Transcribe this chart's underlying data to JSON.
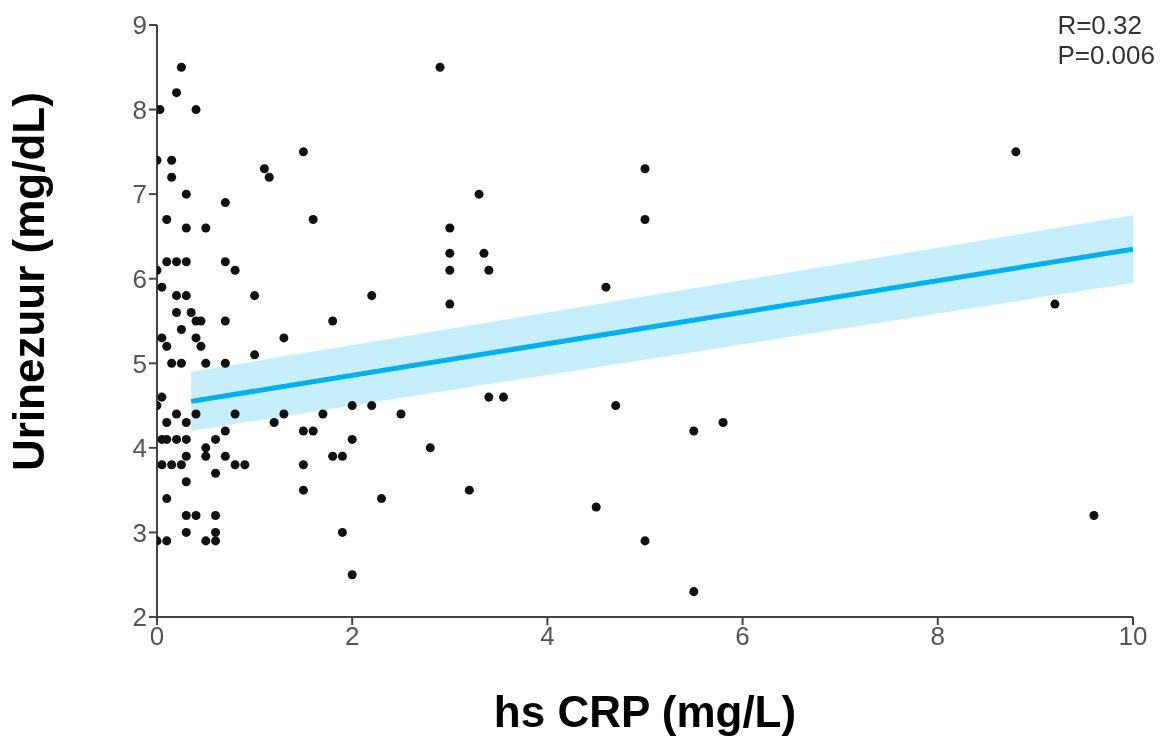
{
  "chart_data": {
    "type": "scatter",
    "xlabel": "hs CRP (mg/L)",
    "ylabel": "Urinezuur (mg/dL)",
    "annotations": [
      "R=0.32",
      "P=0.006"
    ],
    "xlim": [
      0,
      10
    ],
    "xticks": [
      0,
      2,
      4,
      6,
      8,
      10
    ],
    "ylim": [
      2,
      9
    ],
    "yticks": [
      2,
      3,
      4,
      5,
      6,
      7,
      8,
      9
    ],
    "grid": false,
    "series": [
      {
        "color": "#111111",
        "marker": "circle",
        "x": [
          0.03,
          0.2,
          0.25,
          0.4,
          0.0,
          0.15,
          0.15,
          0.3,
          0.1,
          0.3,
          0.5,
          0.7,
          0.0,
          0.1,
          0.2,
          0.3,
          0.7,
          0.8,
          0.05,
          0.2,
          0.3,
          0.05,
          0.1,
          0.2,
          0.25,
          0.35,
          0.4,
          0.45,
          0.4,
          0.45,
          0.7,
          1.0,
          1.3,
          0.15,
          0.25,
          0.5,
          0.7,
          1.0,
          0.05,
          0.0,
          0.1,
          0.2,
          0.3,
          0.4,
          0.7,
          0.8,
          0.05,
          0.1,
          0.2,
          0.3,
          0.5,
          0.6,
          0.05,
          0.15,
          0.25,
          0.1,
          0.3,
          0.3,
          0.5,
          0.6,
          0.7,
          0.8,
          0.9,
          0.3,
          0.4,
          0.3,
          0.6,
          0.6,
          0.0,
          0.1,
          0.5,
          0.6,
          1.1,
          1.15,
          1.5,
          1.6,
          1.2,
          1.3,
          1.5,
          1.6,
          1.5,
          1.5,
          1.7,
          1.8,
          1.8,
          1.9,
          1.9,
          2.0,
          2.0,
          2.0,
          2.2,
          2.2,
          2.3,
          2.5,
          2.8,
          2.9,
          3.0,
          3.0,
          3.0,
          3.0,
          3.2,
          3.3,
          3.35,
          3.4,
          3.4,
          3.55,
          4.5,
          4.6,
          4.7,
          5.0,
          5.0,
          5.0,
          5.5,
          5.5,
          5.8,
          8.8,
          9.2,
          9.6
        ],
        "values": [
          8.0,
          8.2,
          8.5,
          8.0,
          7.4,
          7.4,
          7.2,
          7.0,
          6.7,
          6.6,
          6.6,
          6.9,
          6.1,
          6.2,
          6.2,
          6.2,
          6.2,
          6.1,
          5.9,
          5.8,
          5.8,
          5.3,
          5.2,
          5.6,
          5.4,
          5.6,
          5.5,
          5.5,
          5.3,
          5.2,
          5.5,
          5.8,
          5.3,
          5.0,
          5.0,
          5.0,
          5.0,
          5.1,
          4.6,
          4.5,
          4.3,
          4.4,
          4.3,
          4.4,
          4.2,
          4.4,
          4.1,
          4.1,
          4.1,
          4.1,
          4.0,
          4.1,
          3.8,
          3.8,
          3.8,
          3.4,
          3.9,
          3.6,
          3.9,
          3.7,
          3.9,
          3.8,
          3.8,
          3.2,
          3.2,
          3.0,
          3.2,
          3.0,
          2.9,
          2.9,
          2.9,
          2.9,
          7.3,
          7.2,
          7.5,
          6.7,
          4.3,
          4.4,
          4.2,
          4.2,
          3.8,
          3.5,
          4.4,
          5.5,
          3.9,
          3.9,
          3.0,
          2.5,
          4.1,
          4.5,
          4.5,
          5.8,
          3.4,
          4.4,
          4.0,
          8.5,
          6.6,
          6.3,
          6.1,
          5.7,
          3.5,
          7.0,
          6.3,
          6.1,
          4.6,
          4.6,
          3.3,
          5.9,
          4.5,
          7.3,
          6.7,
          2.9,
          4.2,
          2.3,
          4.3,
          7.5,
          5.7,
          3.2
        ]
      },
      {
        "type": "line",
        "marker": "none",
        "color": "#00b0f0",
        "x": [
          0.35,
          10
        ],
        "values": [
          4.55,
          6.35
        ],
        "lower": [
          4.2,
          5.95
        ],
        "upper": [
          4.9,
          6.75
        ]
      }
    ]
  }
}
